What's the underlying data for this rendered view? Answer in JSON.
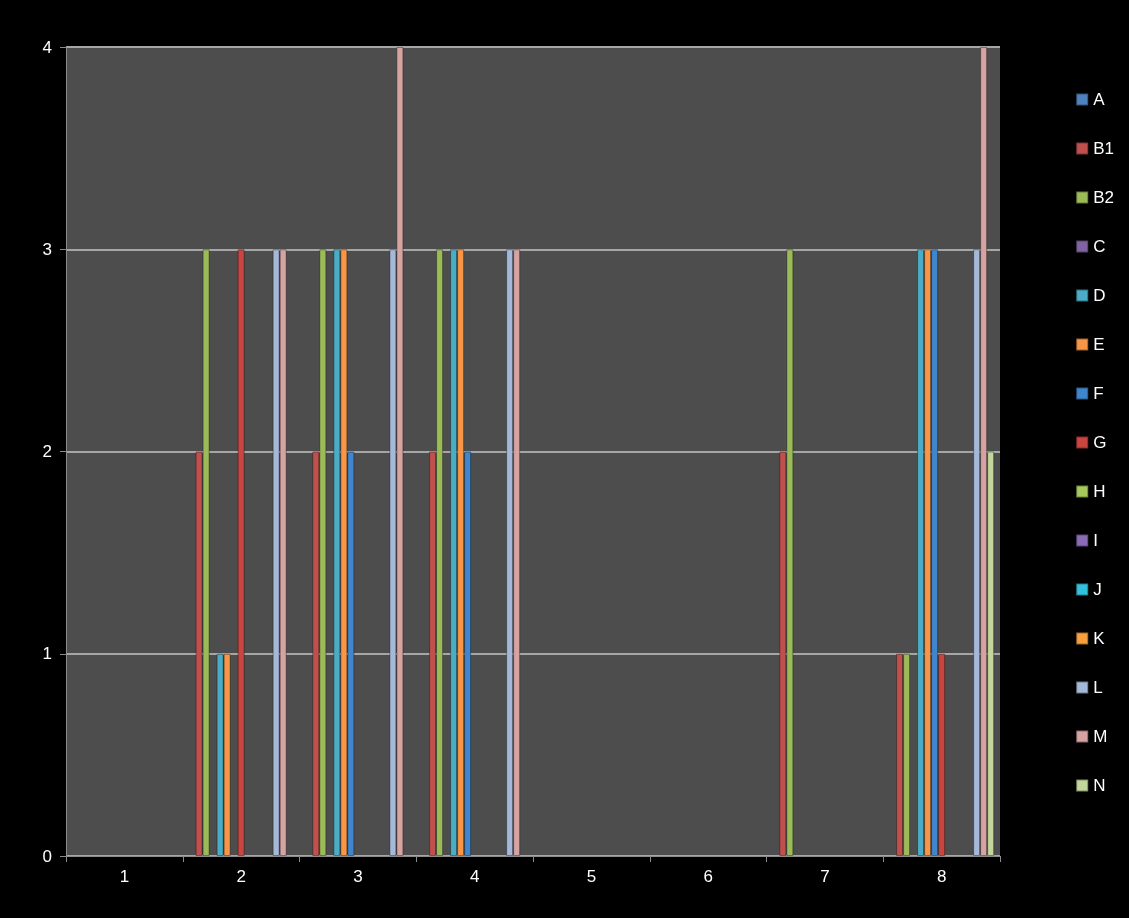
{
  "chart_data": {
    "type": "bar",
    "categories": [
      "1",
      "2",
      "3",
      "4",
      "5",
      "6",
      "7",
      "8"
    ],
    "ylim": [
      0,
      4
    ],
    "yticks": [
      0,
      1,
      2,
      3,
      4
    ],
    "grid": "y",
    "legend": "right",
    "series": [
      {
        "name": "A",
        "color": "#4f81bd",
        "values": [
          null,
          null,
          null,
          null,
          null,
          null,
          null,
          null
        ]
      },
      {
        "name": "B1",
        "color": "#c0504d",
        "values": [
          null,
          2,
          2,
          2,
          null,
          null,
          2,
          1
        ]
      },
      {
        "name": "B2",
        "color": "#9bbb59",
        "values": [
          null,
          3,
          3,
          3,
          null,
          null,
          3,
          1
        ]
      },
      {
        "name": "C",
        "color": "#8064a2",
        "values": [
          null,
          null,
          null,
          null,
          null,
          null,
          null,
          null
        ]
      },
      {
        "name": "D",
        "color": "#4bacc6",
        "values": [
          null,
          1,
          3,
          3,
          null,
          null,
          null,
          3
        ]
      },
      {
        "name": "E",
        "color": "#f79646",
        "values": [
          null,
          1,
          3,
          3,
          null,
          null,
          null,
          3
        ]
      },
      {
        "name": "F",
        "color": "#3f86cf",
        "values": [
          null,
          null,
          2,
          2,
          null,
          null,
          null,
          3
        ]
      },
      {
        "name": "G",
        "color": "#c9453f",
        "values": [
          null,
          3,
          null,
          null,
          null,
          null,
          null,
          1
        ]
      },
      {
        "name": "H",
        "color": "#a5c95a",
        "values": [
          null,
          null,
          null,
          null,
          null,
          null,
          null,
          null
        ]
      },
      {
        "name": "I",
        "color": "#8b6bb5",
        "values": [
          null,
          null,
          null,
          null,
          null,
          null,
          null,
          null
        ]
      },
      {
        "name": "J",
        "color": "#33c0dd",
        "values": [
          null,
          null,
          null,
          null,
          null,
          null,
          null,
          null
        ]
      },
      {
        "name": "K",
        "color": "#f7a040",
        "values": [
          null,
          null,
          null,
          null,
          null,
          null,
          null,
          null
        ]
      },
      {
        "name": "L",
        "color": "#a5b8d8",
        "values": [
          null,
          3,
          3,
          3,
          null,
          null,
          null,
          3
        ]
      },
      {
        "name": "M",
        "color": "#d6a3a3",
        "values": [
          null,
          3,
          4,
          3,
          null,
          null,
          null,
          4
        ]
      },
      {
        "name": "N",
        "color": "#c3d69b",
        "values": [
          null,
          null,
          null,
          null,
          null,
          null,
          null,
          2
        ]
      }
    ]
  }
}
